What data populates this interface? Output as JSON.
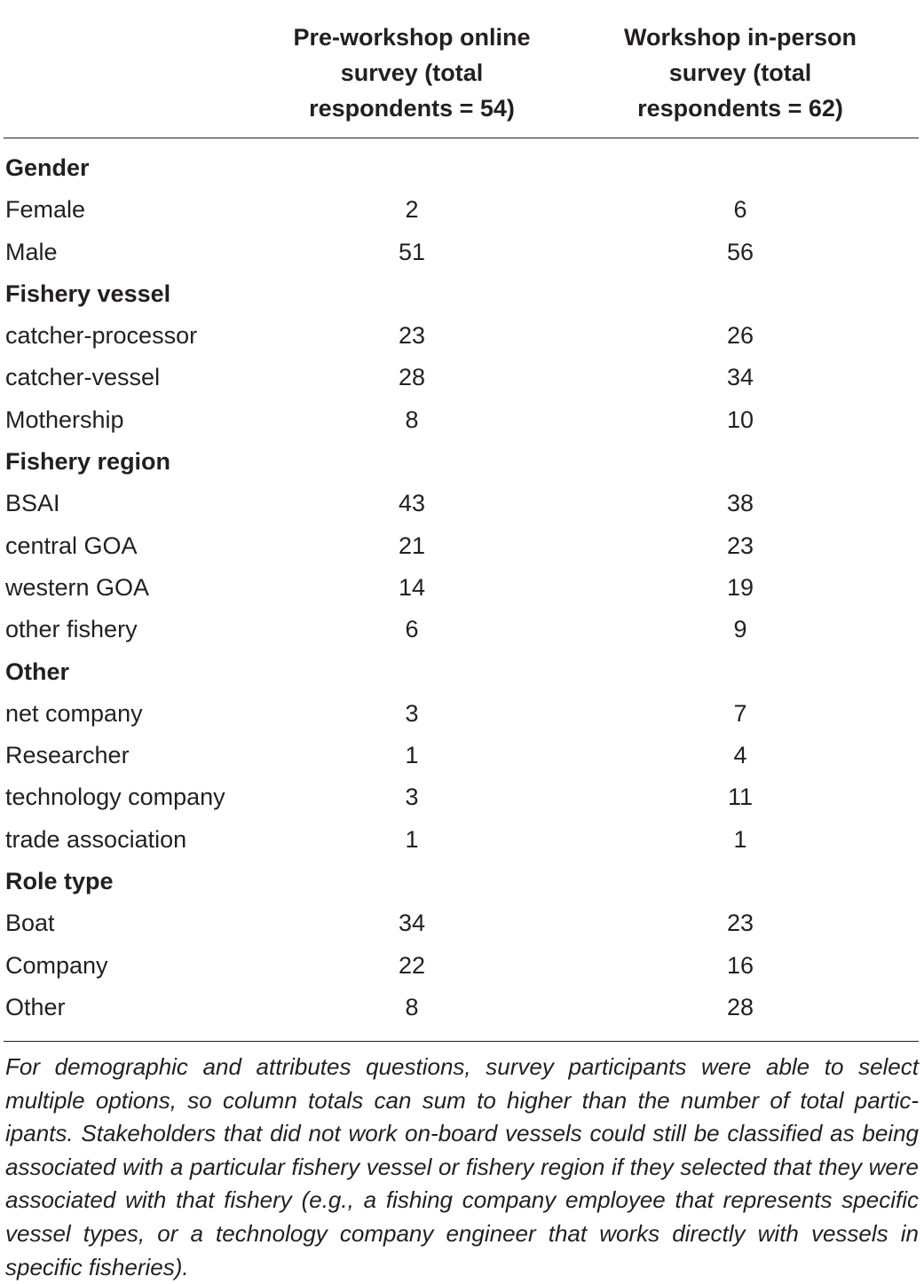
{
  "table": {
    "columns": [
      "Pre-workshop online\nsurvey (total\nrespondents = 54)",
      "Workshop in-person\nsurvey (total\nrespondents = 62)"
    ],
    "rows": [
      {
        "label": "Gender",
        "section": true
      },
      {
        "label": "Female",
        "pre": "2",
        "workshop": "6"
      },
      {
        "label": "Male",
        "pre": "51",
        "workshop": "56"
      },
      {
        "label": "Fishery vessel",
        "section": true
      },
      {
        "label": "catcher-processor",
        "pre": "23",
        "workshop": "26"
      },
      {
        "label": "catcher-vessel",
        "pre": "28",
        "workshop": "34"
      },
      {
        "label": "Mothership",
        "pre": "8",
        "workshop": "10"
      },
      {
        "label": "Fishery region",
        "section": true
      },
      {
        "label": "BSAI",
        "pre": "43",
        "workshop": "38"
      },
      {
        "label": "central GOA",
        "pre": "21",
        "workshop": "23"
      },
      {
        "label": "western GOA",
        "pre": "14",
        "workshop": "19"
      },
      {
        "label": "other fishery",
        "pre": "6",
        "workshop": "9"
      },
      {
        "label": "Other",
        "section": true
      },
      {
        "label": "net company",
        "pre": "3",
        "workshop": "7"
      },
      {
        "label": "Researcher",
        "pre": "1",
        "workshop": "4"
      },
      {
        "label": "technology company",
        "pre": "3",
        "workshop": "11"
      },
      {
        "label": "trade association",
        "pre": "1",
        "workshop": "1"
      },
      {
        "label": "Role type",
        "section": true
      },
      {
        "label": "Boat",
        "pre": "34",
        "workshop": "23"
      },
      {
        "label": "Company",
        "pre": "22",
        "workshop": "16"
      },
      {
        "label": "Other",
        "pre": "8",
        "workshop": "28"
      }
    ]
  },
  "footnote": "For demographic and attributes questions, survey participants were able to select multiple options, so column totals can sum to higher than the number of total partic-ipants. Stakeholders that did not work on-board vessels could still be classified as being associated with a particular fishery vessel or fishery region if they selected that they were associated with that fishery (e.g., a fishing company employee that represents specific vessel types, or a technology company engineer that works directly with vessels in specific fisheries)."
}
